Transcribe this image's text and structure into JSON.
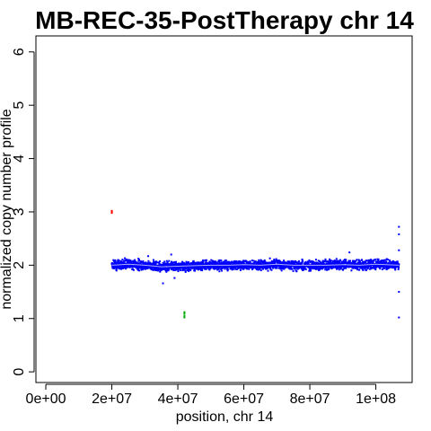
{
  "chart_data": {
    "type": "scatter",
    "title": "MB-REC-35-PostTherapy chr 14",
    "xlabel": "position, chr 14",
    "ylabel": "normalized copy number profile",
    "xlim": [
      -3000000,
      111000000
    ],
    "ylim": [
      -0.2,
      6.3
    ],
    "x_ticks": [
      0,
      20000000,
      40000000,
      60000000,
      80000000,
      100000000
    ],
    "x_tick_labels": [
      "0e+00",
      "2e+07",
      "4e+07",
      "6e+07",
      "8e+07",
      "1e+08"
    ],
    "y_ticks": [
      0,
      1,
      2,
      3,
      4,
      5,
      6
    ],
    "y_tick_labels": [
      "0",
      "1",
      "2",
      "3",
      "4",
      "5",
      "6"
    ],
    "grid": false,
    "legend": "none",
    "main_band": {
      "color": "#0000ff",
      "x_start": 20000000,
      "x_end": 107000000,
      "center": 2.0,
      "profile": [
        [
          20000000,
          2.0
        ],
        [
          25000000,
          2.02
        ],
        [
          30000000,
          2.0
        ],
        [
          35000000,
          1.97
        ],
        [
          40000000,
          1.98
        ],
        [
          45000000,
          1.99
        ],
        [
          50000000,
          2.0
        ],
        [
          55000000,
          2.0
        ],
        [
          60000000,
          2.01
        ],
        [
          65000000,
          2.0
        ],
        [
          70000000,
          2.02
        ],
        [
          75000000,
          2.0
        ],
        [
          80000000,
          2.0
        ],
        [
          85000000,
          2.0
        ],
        [
          90000000,
          2.01
        ],
        [
          95000000,
          2.0
        ],
        [
          100000000,
          2.02
        ],
        [
          107000000,
          2.0
        ]
      ],
      "segment_line_color": "#aaaaff"
    },
    "series": [
      {
        "color": "#ff0000",
        "points": [
          [
            20000000,
            2.98
          ],
          [
            20000000,
            3.02
          ],
          [
            20000000,
            3.0
          ]
        ]
      },
      {
        "color": "#00aa00",
        "points": [
          [
            42000000,
            1.05
          ],
          [
            42000000,
            1.09
          ],
          [
            42000000,
            1.12
          ],
          [
            42000000,
            1.02
          ]
        ]
      },
      {
        "color": "#0000ff",
        "points": [
          [
            107000000,
            2.72
          ],
          [
            107000000,
            2.58
          ],
          [
            107000000,
            2.28
          ],
          [
            107000000,
            1.5
          ],
          [
            107000000,
            1.02
          ],
          [
            35500000,
            1.66
          ],
          [
            39000000,
            1.76
          ],
          [
            92000000,
            2.24
          ],
          [
            31000000,
            2.17
          ],
          [
            38000000,
            2.2
          ]
        ]
      }
    ]
  }
}
